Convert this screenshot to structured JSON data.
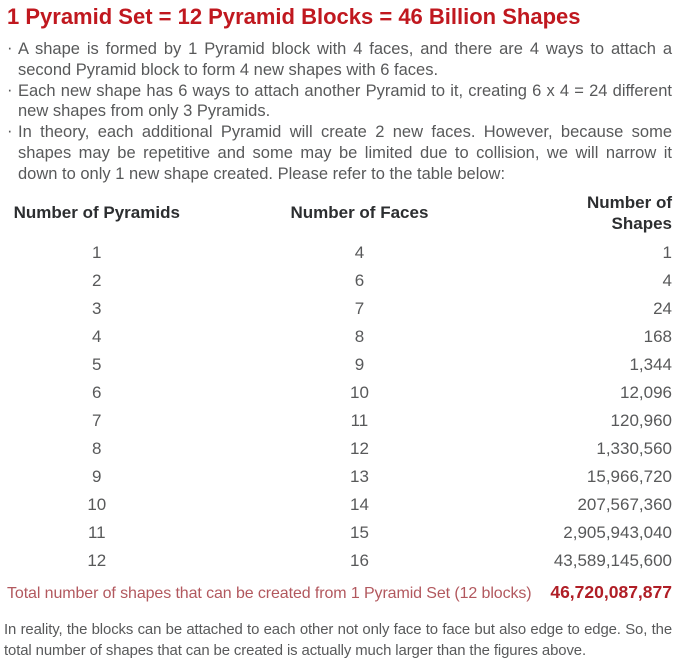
{
  "title": "1 Pyramid Set = 12 Pyramid Blocks = 46 Billion Shapes",
  "bullet_char": "·",
  "bullets": [
    "A shape is formed by 1 Pyramid block with 4 faces, and there are 4 ways to attach a second Pyramid block to form 4 new shapes with 6 faces.",
    "Each new shape has 6 ways to attach another Pyramid to it, creating 6 x 4 = 24 different new shapes from only 3 Pyramids.",
    "In theory, each additional Pyramid will create 2 new faces. However, because some shapes may be repetitive and some may be limited due to collision, we will narrow it down to only 1 new shape created. Please refer to the table below:"
  ],
  "table": {
    "headers": [
      "Number of Pyramids",
      "Number of Faces",
      "Number of Shapes"
    ],
    "rows": [
      [
        "1",
        "4",
        "1"
      ],
      [
        "2",
        "6",
        "4"
      ],
      [
        "3",
        "7",
        "24"
      ],
      [
        "4",
        "8",
        "168"
      ],
      [
        "5",
        "9",
        "1,344"
      ],
      [
        "6",
        "10",
        "12,096"
      ],
      [
        "7",
        "11",
        "120,960"
      ],
      [
        "8",
        "12",
        "1,330,560"
      ],
      [
        "9",
        "13",
        "15,966,720"
      ],
      [
        "10",
        "14",
        "207,567,360"
      ],
      [
        "11",
        "15",
        "2,905,943,040"
      ],
      [
        "12",
        "16",
        "43,589,145,600"
      ]
    ]
  },
  "total": {
    "label": "Total number of shapes that can be created from 1 Pyramid Set (12 blocks)",
    "value": "46,720,087,877"
  },
  "footer": "In reality, the blocks can be attached to each other not only face to face but also edge to edge. So, the total number of shapes that can be created is actually much larger than the figures above.",
  "colors": {
    "title_red": "#C0181F",
    "total_label_red": "#B2585E",
    "total_value_red": "#B01E26",
    "body_gray": "#58595A",
    "table_header_dark": "#2C2E30"
  }
}
